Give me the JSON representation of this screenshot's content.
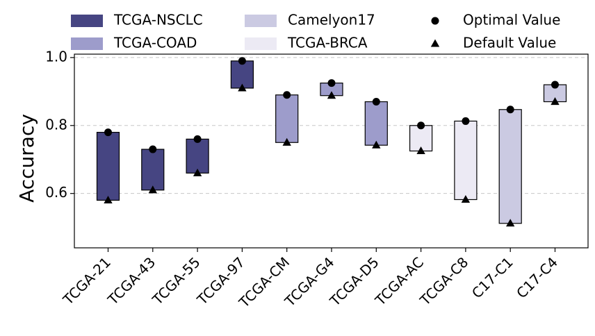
{
  "chart_data": {
    "type": "bar",
    "ylabel": "Accuracy",
    "ylim": [
      0.44,
      1.01
    ],
    "yticks": [
      0.6,
      0.8,
      1.0
    ],
    "ytick_labels": [
      "0.6",
      "0.8",
      "1.0"
    ],
    "grid": "horizontal dashed",
    "legend": {
      "placement": "top",
      "groups": [
        {
          "name": "TCGA-NSCLC",
          "color": "#464582"
        },
        {
          "name": "TCGA-COAD",
          "color": "#9d9ccb"
        },
        {
          "name": "Camelyon17",
          "color": "#cbcae2"
        },
        {
          "name": "TCGA-BRCA",
          "color": "#eceaf4"
        }
      ],
      "markers": [
        {
          "name": "Optimal Value",
          "marker": "circle"
        },
        {
          "name": "Default Value",
          "marker": "triangle"
        }
      ]
    },
    "categories": [
      "TCGA-21",
      "TCGA-43",
      "TCGA-55",
      "TCGA-97",
      "TCGA-CM",
      "TCGA-G4",
      "TCGA-D5",
      "TCGA-AC",
      "TCGA-C8",
      "C17-C1",
      "C17-C4"
    ],
    "group": [
      "TCGA-NSCLC",
      "TCGA-NSCLC",
      "TCGA-NSCLC",
      "TCGA-NSCLC",
      "TCGA-COAD",
      "TCGA-COAD",
      "TCGA-COAD",
      "TCGA-BRCA",
      "TCGA-BRCA",
      "Camelyon17",
      "Camelyon17"
    ],
    "series": [
      {
        "name": "Optimal Value",
        "values": [
          0.78,
          0.73,
          0.76,
          0.99,
          0.89,
          0.925,
          0.87,
          0.8,
          0.813,
          0.847,
          0.92
        ]
      },
      {
        "name": "Default Value",
        "values": [
          0.58,
          0.61,
          0.66,
          0.91,
          0.75,
          0.888,
          0.742,
          0.725,
          0.582,
          0.512,
          0.87
        ]
      }
    ]
  }
}
